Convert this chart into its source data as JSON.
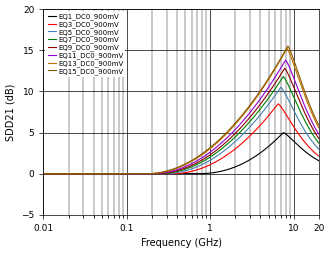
{
  "title": "",
  "xlabel": "Frequency (GHz)",
  "ylabel": "SDD21 (dB)",
  "xlim": [
    0.01,
    20
  ],
  "ylim": [
    -5,
    20
  ],
  "yticks": [
    -5,
    0,
    5,
    10,
    15,
    20
  ],
  "legend_labels": [
    "EQ1_DC0_900mV",
    "EQ3_DC0_900mV",
    "EQ5_DC0_900mV",
    "EQ7_DC0_900mV",
    "EQ9_DC0_900mV",
    "EQ11_DC0_900mV",
    "EQ13_DC0_900mV",
    "EQ15_DC0_900mV"
  ],
  "colors": [
    "#000000",
    "#ff0000",
    "#4682b4",
    "#008000",
    "#8b0000",
    "#9400d3",
    "#c07000",
    "#8b5a00"
  ],
  "curve_params": [
    {
      "peak_freq": 7.5,
      "peak_gain": 5.0,
      "rise_start": 0.7,
      "rise_pow": 2.2,
      "fall_k": 3.5
    },
    {
      "peak_freq": 6.5,
      "peak_gain": 8.5,
      "rise_start": 0.35,
      "rise_pow": 2.0,
      "fall_k": 3.5
    },
    {
      "peak_freq": 7.0,
      "peak_gain": 10.5,
      "rise_start": 0.28,
      "rise_pow": 2.0,
      "fall_k": 3.5
    },
    {
      "peak_freq": 7.5,
      "peak_gain": 11.8,
      "rise_start": 0.24,
      "rise_pow": 2.0,
      "fall_k": 3.5
    },
    {
      "peak_freq": 7.8,
      "peak_gain": 12.8,
      "rise_start": 0.22,
      "rise_pow": 2.0,
      "fall_k": 3.5
    },
    {
      "peak_freq": 8.0,
      "peak_gain": 13.8,
      "rise_start": 0.2,
      "rise_pow": 2.0,
      "fall_k": 3.5
    },
    {
      "peak_freq": 8.3,
      "peak_gain": 15.2,
      "rise_start": 0.18,
      "rise_pow": 2.0,
      "fall_k": 3.5
    },
    {
      "peak_freq": 8.5,
      "peak_gain": 15.5,
      "rise_start": 0.17,
      "rise_pow": 2.0,
      "fall_k": 3.5
    }
  ],
  "background_color": "#ffffff",
  "grid_color": "#000000",
  "legend_fontsize": 5.0,
  "axis_fontsize": 7,
  "tick_fontsize": 6.5
}
